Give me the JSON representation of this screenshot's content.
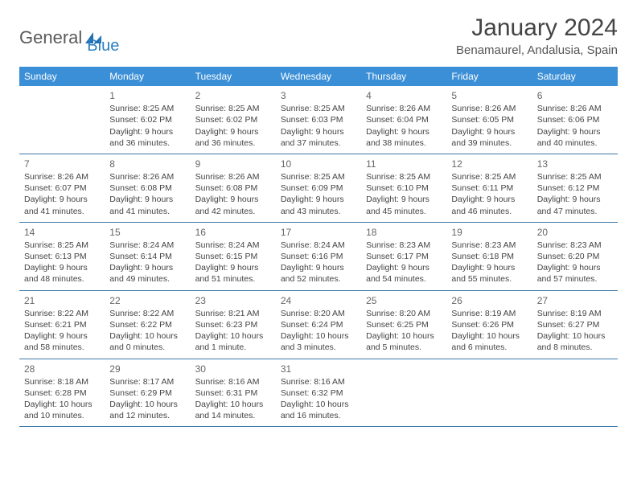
{
  "logo": {
    "text1": "General",
    "text2": "Blue"
  },
  "title": "January 2024",
  "location": "Benamaurel, Andalusia, Spain",
  "colors": {
    "header_bg": "#3b8fd6",
    "header_text": "#ffffff",
    "row_border": "#3b78a8",
    "text": "#444444",
    "logo_gray": "#5a5a5a",
    "logo_blue": "#2a7fbf"
  },
  "weekdays": [
    "Sunday",
    "Monday",
    "Tuesday",
    "Wednesday",
    "Thursday",
    "Friday",
    "Saturday"
  ],
  "weeks": [
    [
      {
        "n": "",
        "lines": []
      },
      {
        "n": "1",
        "lines": [
          "Sunrise: 8:25 AM",
          "Sunset: 6:02 PM",
          "Daylight: 9 hours",
          "and 36 minutes."
        ]
      },
      {
        "n": "2",
        "lines": [
          "Sunrise: 8:25 AM",
          "Sunset: 6:02 PM",
          "Daylight: 9 hours",
          "and 36 minutes."
        ]
      },
      {
        "n": "3",
        "lines": [
          "Sunrise: 8:25 AM",
          "Sunset: 6:03 PM",
          "Daylight: 9 hours",
          "and 37 minutes."
        ]
      },
      {
        "n": "4",
        "lines": [
          "Sunrise: 8:26 AM",
          "Sunset: 6:04 PM",
          "Daylight: 9 hours",
          "and 38 minutes."
        ]
      },
      {
        "n": "5",
        "lines": [
          "Sunrise: 8:26 AM",
          "Sunset: 6:05 PM",
          "Daylight: 9 hours",
          "and 39 minutes."
        ]
      },
      {
        "n": "6",
        "lines": [
          "Sunrise: 8:26 AM",
          "Sunset: 6:06 PM",
          "Daylight: 9 hours",
          "and 40 minutes."
        ]
      }
    ],
    [
      {
        "n": "7",
        "lines": [
          "Sunrise: 8:26 AM",
          "Sunset: 6:07 PM",
          "Daylight: 9 hours",
          "and 41 minutes."
        ]
      },
      {
        "n": "8",
        "lines": [
          "Sunrise: 8:26 AM",
          "Sunset: 6:08 PM",
          "Daylight: 9 hours",
          "and 41 minutes."
        ]
      },
      {
        "n": "9",
        "lines": [
          "Sunrise: 8:26 AM",
          "Sunset: 6:08 PM",
          "Daylight: 9 hours",
          "and 42 minutes."
        ]
      },
      {
        "n": "10",
        "lines": [
          "Sunrise: 8:25 AM",
          "Sunset: 6:09 PM",
          "Daylight: 9 hours",
          "and 43 minutes."
        ]
      },
      {
        "n": "11",
        "lines": [
          "Sunrise: 8:25 AM",
          "Sunset: 6:10 PM",
          "Daylight: 9 hours",
          "and 45 minutes."
        ]
      },
      {
        "n": "12",
        "lines": [
          "Sunrise: 8:25 AM",
          "Sunset: 6:11 PM",
          "Daylight: 9 hours",
          "and 46 minutes."
        ]
      },
      {
        "n": "13",
        "lines": [
          "Sunrise: 8:25 AM",
          "Sunset: 6:12 PM",
          "Daylight: 9 hours",
          "and 47 minutes."
        ]
      }
    ],
    [
      {
        "n": "14",
        "lines": [
          "Sunrise: 8:25 AM",
          "Sunset: 6:13 PM",
          "Daylight: 9 hours",
          "and 48 minutes."
        ]
      },
      {
        "n": "15",
        "lines": [
          "Sunrise: 8:24 AM",
          "Sunset: 6:14 PM",
          "Daylight: 9 hours",
          "and 49 minutes."
        ]
      },
      {
        "n": "16",
        "lines": [
          "Sunrise: 8:24 AM",
          "Sunset: 6:15 PM",
          "Daylight: 9 hours",
          "and 51 minutes."
        ]
      },
      {
        "n": "17",
        "lines": [
          "Sunrise: 8:24 AM",
          "Sunset: 6:16 PM",
          "Daylight: 9 hours",
          "and 52 minutes."
        ]
      },
      {
        "n": "18",
        "lines": [
          "Sunrise: 8:23 AM",
          "Sunset: 6:17 PM",
          "Daylight: 9 hours",
          "and 54 minutes."
        ]
      },
      {
        "n": "19",
        "lines": [
          "Sunrise: 8:23 AM",
          "Sunset: 6:18 PM",
          "Daylight: 9 hours",
          "and 55 minutes."
        ]
      },
      {
        "n": "20",
        "lines": [
          "Sunrise: 8:23 AM",
          "Sunset: 6:20 PM",
          "Daylight: 9 hours",
          "and 57 minutes."
        ]
      }
    ],
    [
      {
        "n": "21",
        "lines": [
          "Sunrise: 8:22 AM",
          "Sunset: 6:21 PM",
          "Daylight: 9 hours",
          "and 58 minutes."
        ]
      },
      {
        "n": "22",
        "lines": [
          "Sunrise: 8:22 AM",
          "Sunset: 6:22 PM",
          "Daylight: 10 hours",
          "and 0 minutes."
        ]
      },
      {
        "n": "23",
        "lines": [
          "Sunrise: 8:21 AM",
          "Sunset: 6:23 PM",
          "Daylight: 10 hours",
          "and 1 minute."
        ]
      },
      {
        "n": "24",
        "lines": [
          "Sunrise: 8:20 AM",
          "Sunset: 6:24 PM",
          "Daylight: 10 hours",
          "and 3 minutes."
        ]
      },
      {
        "n": "25",
        "lines": [
          "Sunrise: 8:20 AM",
          "Sunset: 6:25 PM",
          "Daylight: 10 hours",
          "and 5 minutes."
        ]
      },
      {
        "n": "26",
        "lines": [
          "Sunrise: 8:19 AM",
          "Sunset: 6:26 PM",
          "Daylight: 10 hours",
          "and 6 minutes."
        ]
      },
      {
        "n": "27",
        "lines": [
          "Sunrise: 8:19 AM",
          "Sunset: 6:27 PM",
          "Daylight: 10 hours",
          "and 8 minutes."
        ]
      }
    ],
    [
      {
        "n": "28",
        "lines": [
          "Sunrise: 8:18 AM",
          "Sunset: 6:28 PM",
          "Daylight: 10 hours",
          "and 10 minutes."
        ]
      },
      {
        "n": "29",
        "lines": [
          "Sunrise: 8:17 AM",
          "Sunset: 6:29 PM",
          "Daylight: 10 hours",
          "and 12 minutes."
        ]
      },
      {
        "n": "30",
        "lines": [
          "Sunrise: 8:16 AM",
          "Sunset: 6:31 PM",
          "Daylight: 10 hours",
          "and 14 minutes."
        ]
      },
      {
        "n": "31",
        "lines": [
          "Sunrise: 8:16 AM",
          "Sunset: 6:32 PM",
          "Daylight: 10 hours",
          "and 16 minutes."
        ]
      },
      {
        "n": "",
        "lines": []
      },
      {
        "n": "",
        "lines": []
      },
      {
        "n": "",
        "lines": []
      }
    ]
  ]
}
